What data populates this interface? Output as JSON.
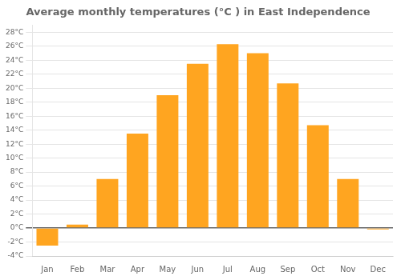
{
  "chart_data": {
    "type": "bar",
    "title": "Average monthly temperatures (°C ) in East Independence",
    "categories": [
      "Jan",
      "Feb",
      "Mar",
      "Apr",
      "May",
      "Jun",
      "Jul",
      "Aug",
      "Sep",
      "Oct",
      "Nov",
      "Dec"
    ],
    "values": [
      -2.5,
      0.5,
      7.0,
      13.5,
      19.0,
      23.5,
      26.3,
      25.0,
      20.7,
      14.7,
      7.0,
      -0.2
    ],
    "color": "#FFA520",
    "ylim": [
      -4,
      29
    ],
    "yticks": [
      {
        "value": -4,
        "label": "-4°C"
      },
      {
        "value": -2,
        "label": "-2°C"
      },
      {
        "value": 0,
        "label": "0°C"
      },
      {
        "value": 2,
        "label": "2°C"
      },
      {
        "value": 4,
        "label": "4°C"
      },
      {
        "value": 6,
        "label": "6°C"
      },
      {
        "value": 8,
        "label": "8°C"
      },
      {
        "value": 10,
        "label": "10°C"
      },
      {
        "value": 12,
        "label": "12°C"
      },
      {
        "value": 14,
        "label": "14°C"
      },
      {
        "value": 16,
        "label": "16°C"
      },
      {
        "value": 18,
        "label": "18°C"
      },
      {
        "value": 20,
        "label": "20°C"
      },
      {
        "value": 22,
        "label": "22°C"
      },
      {
        "value": 24,
        "label": "24°C"
      },
      {
        "value": 26,
        "label": "26°C"
      },
      {
        "value": 28,
        "label": "28°C"
      }
    ],
    "grid": true
  }
}
